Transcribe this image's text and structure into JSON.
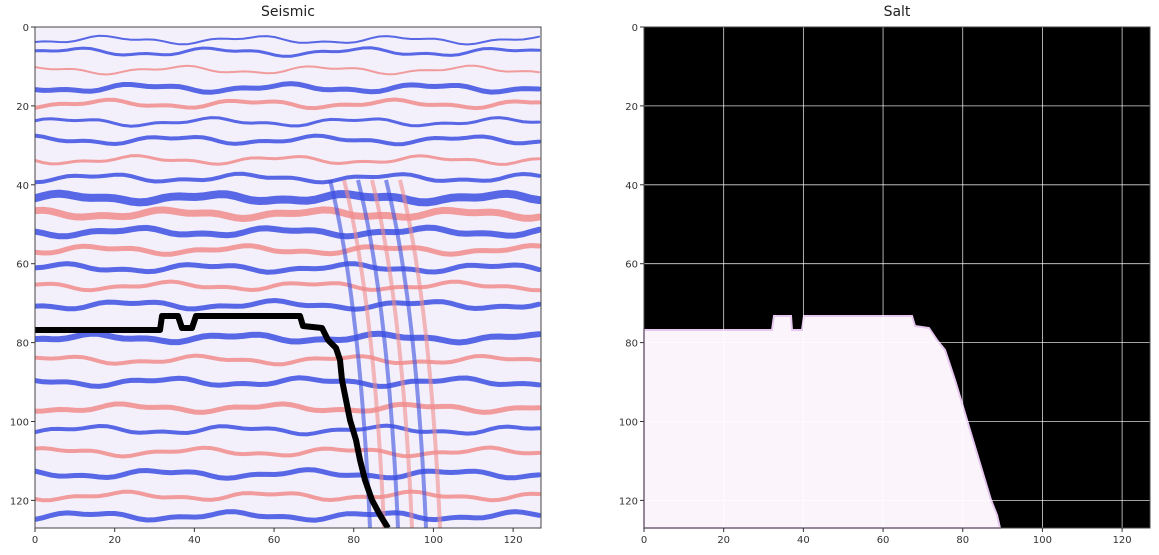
{
  "panels": [
    {
      "title": "Seismic",
      "x_ticks": [
        "0",
        "20",
        "40",
        "60",
        "80",
        "100",
        "120"
      ],
      "y_ticks": [
        "0",
        "20",
        "40",
        "60",
        "80",
        "100",
        "120"
      ]
    },
    {
      "title": "Salt",
      "x_ticks": [
        "0",
        "20",
        "40",
        "60",
        "80",
        "100",
        "120"
      ],
      "y_ticks": [
        "0",
        "20",
        "40",
        "60",
        "80",
        "100",
        "120"
      ]
    }
  ],
  "colors": {
    "seismic_blue": "#3b4fe0",
    "seismic_red": "#f08c8c",
    "seismic_white": "#f8f6ff",
    "salt_mask": "#fbf5fb",
    "background_mask": "#000000",
    "salt_outline": "#000000",
    "grid": "#ffffff"
  }
}
